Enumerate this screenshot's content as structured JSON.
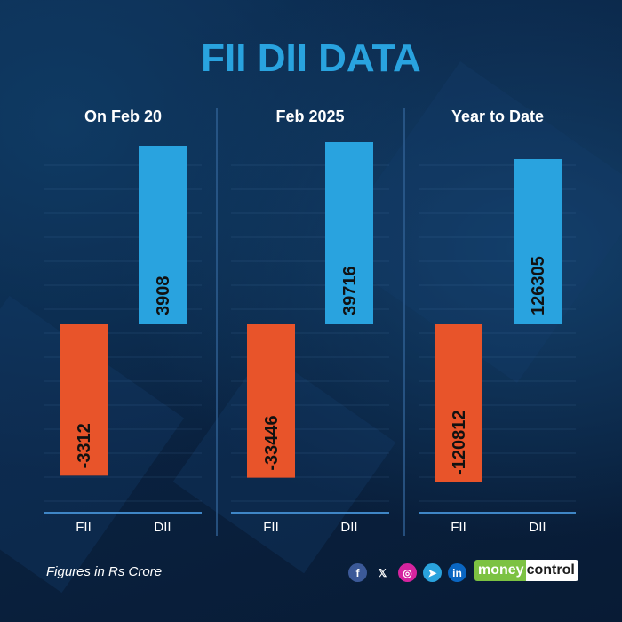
{
  "title": "FII DII DATA",
  "footnote": "Figures in Rs Crore",
  "brand": {
    "part1": "money",
    "part2": "control"
  },
  "social_icons": [
    {
      "name": "facebook-icon",
      "glyph": "f",
      "color": "#3b5998"
    },
    {
      "name": "x-icon",
      "glyph": "𝕏",
      "color": "transparent"
    },
    {
      "name": "instagram-icon",
      "glyph": "◎",
      "color": "#d6249f"
    },
    {
      "name": "telegram-icon",
      "glyph": "➤",
      "color": "#2aa3dd"
    },
    {
      "name": "linkedin-icon",
      "glyph": "in",
      "color": "#0a66c2"
    }
  ],
  "colors": {
    "fii": "#e8542a",
    "dii": "#29a3df",
    "title": "#29a3df",
    "axis": "#3f86c6"
  },
  "chart_data": [
    {
      "type": "bar",
      "title": "On Feb 20",
      "categories": [
        "FII",
        "DII"
      ],
      "values": [
        -3312,
        3908
      ]
    },
    {
      "type": "bar",
      "title": "Feb 2025",
      "categories": [
        "FII",
        "DII"
      ],
      "values": [
        -33446,
        39716
      ]
    },
    {
      "type": "bar",
      "title": "Year to Date",
      "categories": [
        "FII",
        "DII"
      ],
      "values": [
        -120812,
        126305
      ]
    }
  ]
}
